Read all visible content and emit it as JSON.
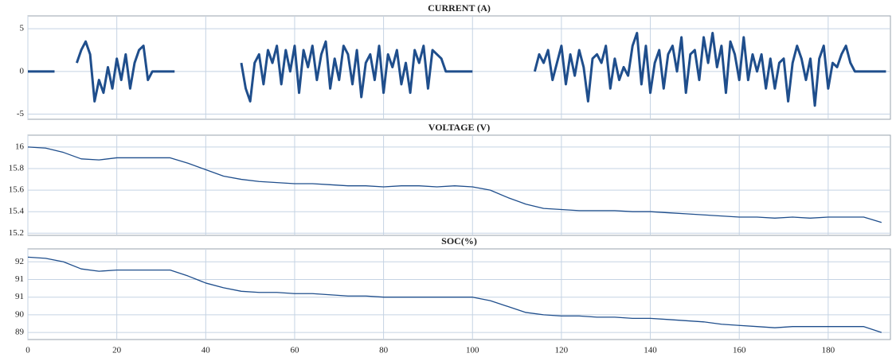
{
  "chart_data": [
    {
      "type": "line",
      "title": "CURRENT (A)",
      "x": [
        0,
        1,
        2,
        3,
        4,
        5,
        6,
        7,
        8,
        9,
        10,
        11,
        12,
        13,
        14,
        15,
        16,
        17,
        18,
        19,
        20,
        21,
        22,
        23,
        24,
        25,
        26,
        27,
        28,
        29,
        30,
        31,
        32,
        33,
        34,
        35,
        36,
        37,
        38,
        39,
        40,
        41,
        42,
        43,
        44,
        45,
        46,
        47,
        48,
        49,
        50,
        51,
        52,
        53,
        54,
        55,
        56,
        57,
        58,
        59,
        60,
        61,
        62,
        63,
        64,
        65,
        66,
        67,
        68,
        69,
        70,
        71,
        72,
        73,
        74,
        75,
        76,
        77,
        78,
        79,
        80,
        81,
        82,
        83,
        84,
        85,
        86,
        87,
        88,
        89,
        90,
        91,
        92,
        93,
        94,
        95,
        96,
        97,
        98,
        99,
        100,
        101,
        102,
        103,
        104,
        105,
        106,
        107,
        108,
        109,
        110,
        111,
        112,
        113,
        114,
        115,
        116,
        117,
        118,
        119,
        120,
        121,
        122,
        123,
        124,
        125,
        126,
        127,
        128,
        129,
        130,
        131,
        132,
        133,
        134,
        135,
        136,
        137,
        138,
        139,
        140,
        141,
        142,
        143,
        144,
        145,
        146,
        147,
        148,
        149,
        150,
        151,
        152,
        153,
        154,
        155,
        156,
        157,
        158,
        159,
        160,
        161,
        162,
        163,
        164,
        165,
        166,
        167,
        168,
        169,
        170,
        171,
        172,
        173,
        174,
        175,
        176,
        177,
        178,
        179,
        180,
        181,
        182,
        183,
        184,
        185,
        186,
        187,
        188,
        189,
        190,
        191,
        192,
        193
      ],
      "series": [
        {
          "color": "#1f4e8c",
          "values": [
            0,
            0,
            0,
            0,
            0,
            0,
            0,
            null,
            null,
            null,
            null,
            1,
            2.5,
            3.5,
            2,
            -3.5,
            -1,
            -2.5,
            0.5,
            -2,
            1.5,
            -1,
            2,
            -2,
            1,
            2.5,
            3,
            -1,
            0,
            0,
            0,
            0,
            0,
            0,
            null,
            null,
            null,
            null,
            null,
            null,
            null,
            null,
            null,
            null,
            null,
            null,
            null,
            null,
            1,
            -2,
            -3.5,
            1,
            2,
            -1.5,
            2.5,
            1,
            3,
            -1.5,
            2.5,
            0,
            3,
            -2.5,
            2.5,
            0.5,
            3,
            -1,
            2,
            3.5,
            -2,
            1.5,
            -1,
            3,
            2,
            -1.5,
            2.5,
            -3,
            1,
            2,
            -1,
            3,
            -2.5,
            2,
            0.5,
            2.5,
            -1.5,
            1,
            -2.5,
            2.5,
            1,
            3,
            -2,
            2.5,
            2,
            1.5,
            0,
            0,
            0,
            0,
            0,
            0,
            0,
            null,
            null,
            null,
            null,
            null,
            null,
            null,
            null,
            null,
            null,
            null,
            null,
            null,
            0,
            2,
            1,
            2.5,
            -1,
            1,
            3,
            -1.5,
            2,
            -0.5,
            2.5,
            0.5,
            -3.5,
            1.5,
            2,
            1,
            3,
            -2,
            1.5,
            -1,
            0.5,
            -0.5,
            3,
            4.5,
            -1.5,
            3,
            -2.5,
            1,
            2.5,
            -2,
            2,
            3,
            0,
            4,
            -2.5,
            2,
            2.5,
            -1,
            4,
            1,
            4.5,
            0.5,
            3,
            -2.5,
            3.5,
            2,
            -1,
            4,
            -1,
            2,
            0,
            2,
            -2,
            1.5,
            -2,
            1,
            1.5,
            -3.5,
            1,
            3,
            1.5,
            -1,
            1.5,
            -4,
            1.5,
            3,
            -2,
            1,
            0.5,
            2,
            3,
            1,
            0,
            0,
            0,
            0,
            0,
            0,
            0,
            0
          ]
        }
      ],
      "xlim": [
        0,
        194
      ],
      "ylim": [
        -5.6,
        6.5
      ],
      "yticks": [
        -5,
        0,
        5
      ],
      "grid": true
    },
    {
      "type": "line",
      "title": "VOLTAGE (V)",
      "x": [
        0,
        4,
        8,
        12,
        16,
        20,
        24,
        28,
        32,
        36,
        40,
        44,
        48,
        52,
        56,
        60,
        64,
        68,
        72,
        76,
        80,
        84,
        88,
        92,
        96,
        100,
        104,
        108,
        112,
        116,
        120,
        124,
        128,
        132,
        136,
        140,
        144,
        148,
        152,
        156,
        160,
        164,
        168,
        172,
        176,
        180,
        184,
        188,
        192
      ],
      "series": [
        {
          "color": "#1f4e8c",
          "values": [
            16.0,
            15.99,
            15.95,
            15.89,
            15.88,
            15.9,
            15.9,
            15.9,
            15.9,
            15.85,
            15.79,
            15.73,
            15.7,
            15.68,
            15.67,
            15.66,
            15.66,
            15.65,
            15.64,
            15.64,
            15.63,
            15.64,
            15.64,
            15.63,
            15.64,
            15.63,
            15.6,
            15.53,
            15.47,
            15.43,
            15.42,
            15.41,
            15.41,
            15.41,
            15.4,
            15.4,
            15.39,
            15.38,
            15.37,
            15.36,
            15.35,
            15.35,
            15.34,
            15.35,
            15.34,
            15.35,
            15.35,
            15.35,
            15.3
          ]
        }
      ],
      "xlim": [
        0,
        194
      ],
      "ylim": [
        15.18,
        16.11
      ],
      "yticks": [
        15.2,
        15.4,
        15.6,
        15.8,
        16
      ],
      "grid": true
    },
    {
      "type": "line",
      "title": "SOC(%)",
      "x": [
        0,
        4,
        8,
        12,
        16,
        20,
        24,
        28,
        32,
        36,
        40,
        44,
        48,
        52,
        56,
        60,
        64,
        68,
        72,
        76,
        80,
        84,
        88,
        92,
        96,
        100,
        104,
        108,
        112,
        116,
        120,
        124,
        128,
        132,
        136,
        140,
        144,
        148,
        152,
        156,
        160,
        164,
        168,
        172,
        176,
        180,
        184,
        188,
        192
      ],
      "series": [
        {
          "color": "#1f4e8c",
          "values": [
            92.2,
            92.15,
            92.0,
            91.7,
            91.6,
            91.65,
            91.65,
            91.65,
            91.65,
            91.4,
            91.1,
            90.9,
            90.75,
            90.7,
            90.7,
            90.65,
            90.65,
            90.6,
            90.55,
            90.55,
            90.5,
            90.5,
            90.5,
            90.5,
            90.5,
            90.5,
            90.35,
            90.1,
            89.85,
            89.75,
            89.7,
            89.7,
            89.65,
            89.65,
            89.6,
            89.6,
            89.55,
            89.5,
            89.45,
            89.35,
            89.3,
            89.25,
            89.2,
            89.25,
            89.25,
            89.25,
            89.25,
            89.25,
            89.0
          ]
        }
      ],
      "xlim": [
        0,
        194
      ],
      "ylim": [
        88.7,
        92.55
      ],
      "yticks": [
        {
          "value": 89,
          "label": "89"
        },
        {
          "value": 89.75,
          "label": "90"
        },
        {
          "value": 90.5,
          "label": "91"
        },
        {
          "value": 91.25,
          "label": "91"
        },
        {
          "value": 92,
          "label": "92"
        }
      ],
      "xticks": [
        0,
        20,
        40,
        60,
        80,
        100,
        120,
        140,
        160,
        180
      ],
      "grid": true
    }
  ]
}
